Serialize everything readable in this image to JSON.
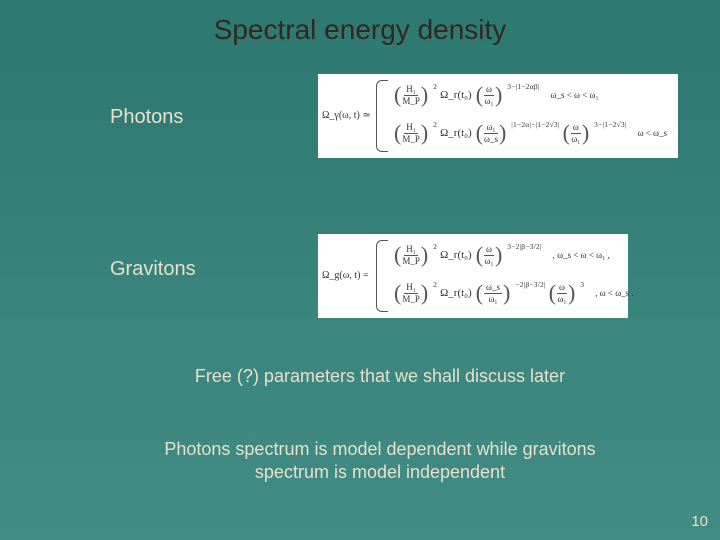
{
  "title": "Spectral energy density",
  "labels": {
    "photons": "Photons",
    "gravitons": "Gravitons"
  },
  "formulas": {
    "photons": {
      "lhs": "Ω_γ(ω, t) ≃",
      "rows": [
        {
          "pieces": {
            "frac1_num": "H₁",
            "frac1_den": "M_P",
            "exp1": "2",
            "mid": "Ω_r(t₀)",
            "frac2_num": "ω",
            "frac2_den": "ω₁",
            "exp2": "3−|1−2αβ|"
          },
          "condition": "ω_s < ω < ω₁"
        },
        {
          "pieces": {
            "frac1_num": "H₁",
            "frac1_den": "M_P",
            "exp1": "2",
            "mid": "Ω_r(t₀)",
            "frac2a_num": "ω₁",
            "frac2a_den": "ω_s",
            "exp2a": "|1−2α|−|1−2√3|",
            "frac2b_num": "ω",
            "frac2b_den": "ω₁",
            "exp2b": "3−|1−2√3|"
          },
          "condition": "ω < ω_s"
        }
      ]
    },
    "gravitons": {
      "lhs": "Ω_g(ω, t) =",
      "rows": [
        {
          "pieces": {
            "frac1_num": "H₁",
            "frac1_den": "M_P",
            "exp1": "2",
            "mid": "Ω_r(t₀)",
            "frac2_num": "ω",
            "frac2_den": "ω₁",
            "exp2": "3−2|β−3/2|"
          },
          "condition": ",   ω_s < ω < ω₁ ,"
        },
        {
          "pieces": {
            "frac1_num": "H₁",
            "frac1_den": "M_P",
            "exp1": "2",
            "mid": "Ω_r(t₀)",
            "frac2a_num": "ω_s",
            "frac2a_den": "ω₁",
            "exp2a": "−2|β−3/2|",
            "frac2b_num": "ω",
            "frac2b_den": "ω₁",
            "exp2b": "3"
          },
          "condition": ",   ω < ω_s ."
        }
      ]
    }
  },
  "lines": {
    "free": "Free (?) parameters that we shall discuss later",
    "bottom": "Photons spectrum is model dependent while gravitons spectrum is model independent"
  },
  "page": "10",
  "colors": {
    "bg_top": "#2d7a72",
    "bg_bot": "#418c84",
    "text_light": "#e8e0c8",
    "title": "#2a2a2a",
    "formula_bg": "#ffffff"
  }
}
